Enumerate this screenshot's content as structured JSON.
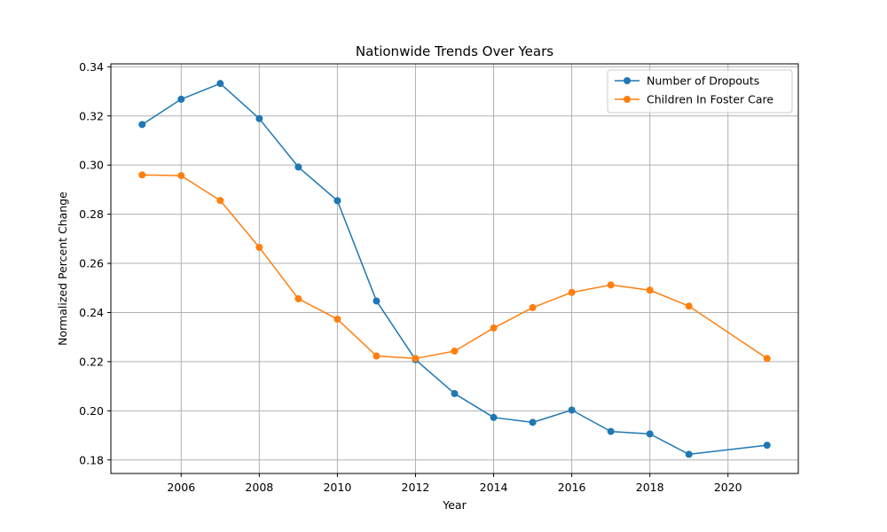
{
  "chart_data": {
    "type": "line",
    "title": "Nationwide Trends Over Years",
    "xlabel": "Year",
    "ylabel": "Normalized Percent Change",
    "x": [
      2005,
      2006,
      2007,
      2008,
      2009,
      2010,
      2011,
      2012,
      2013,
      2014,
      2015,
      2016,
      2017,
      2018,
      2019,
      2021
    ],
    "series": [
      {
        "name": "Number of Dropouts",
        "color": "#1f77b4",
        "values": [
          0.3165,
          0.3268,
          0.3332,
          0.3189,
          0.2992,
          0.2855,
          0.2447,
          0.2208,
          0.207,
          0.1973,
          0.1953,
          0.2003,
          0.1916,
          0.1906,
          0.1823,
          0.186
        ]
      },
      {
        "name": "Children In Foster Care",
        "color": "#ff7f0e",
        "values": [
          0.296,
          0.2957,
          0.2856,
          0.2665,
          0.2456,
          0.2373,
          0.2223,
          0.2213,
          0.2243,
          0.2337,
          0.242,
          0.2482,
          0.2512,
          0.2491,
          0.2426,
          0.2213
        ]
      }
    ],
    "xlim": [
      2004.2,
      2021.8
    ],
    "ylim": [
      0.1745,
      0.3412
    ],
    "xticks": [
      2006,
      2008,
      2010,
      2012,
      2014,
      2016,
      2018,
      2020
    ],
    "yticks": [
      0.18,
      0.2,
      0.22,
      0.24,
      0.26,
      0.28,
      0.3,
      0.32,
      0.34
    ],
    "grid": true,
    "legend_position": "top-right"
  }
}
